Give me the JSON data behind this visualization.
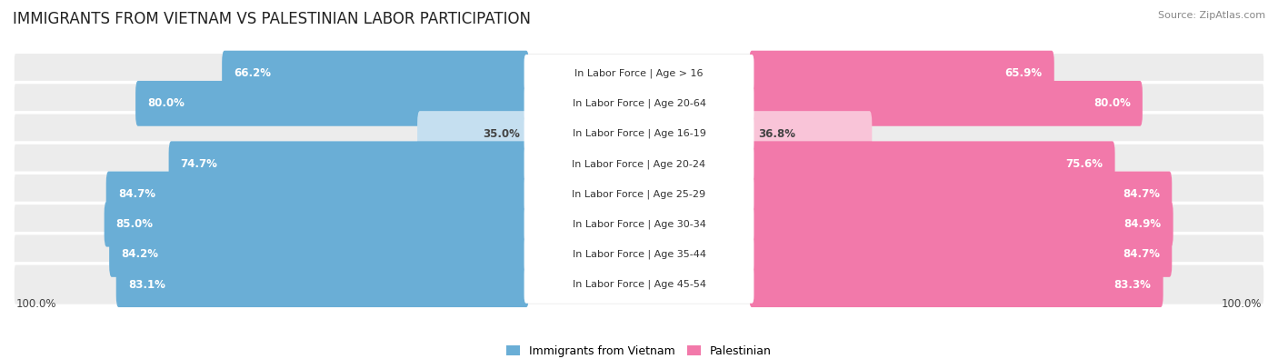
{
  "title": "IMMIGRANTS FROM VIETNAM VS PALESTINIAN LABOR PARTICIPATION",
  "source": "Source: ZipAtlas.com",
  "categories": [
    "In Labor Force | Age > 16",
    "In Labor Force | Age 20-64",
    "In Labor Force | Age 16-19",
    "In Labor Force | Age 20-24",
    "In Labor Force | Age 25-29",
    "In Labor Force | Age 30-34",
    "In Labor Force | Age 35-44",
    "In Labor Force | Age 45-54"
  ],
  "vietnam_values": [
    66.2,
    80.0,
    35.0,
    74.7,
    84.7,
    85.0,
    84.2,
    83.1
  ],
  "palestinian_values": [
    65.9,
    80.0,
    36.8,
    75.6,
    84.7,
    84.9,
    84.7,
    83.3
  ],
  "vietnam_color": "#6aaed6",
  "palestinian_color": "#f279aa",
  "vietnam_color_light": "#c5dff0",
  "palestinian_color_light": "#f9c4d8",
  "background_row_even": "#efefef",
  "background_row_odd": "#e8e8e8",
  "background_color": "#ffffff",
  "max_value": 100.0,
  "legend_vietnam": "Immigrants from Vietnam",
  "legend_palestinian": "Palestinian",
  "bottom_label": "100.0%",
  "title_fontsize": 12,
  "source_fontsize": 8,
  "label_fontsize": 8.5,
  "bar_label_fontsize": 8.5,
  "category_fontsize": 8
}
